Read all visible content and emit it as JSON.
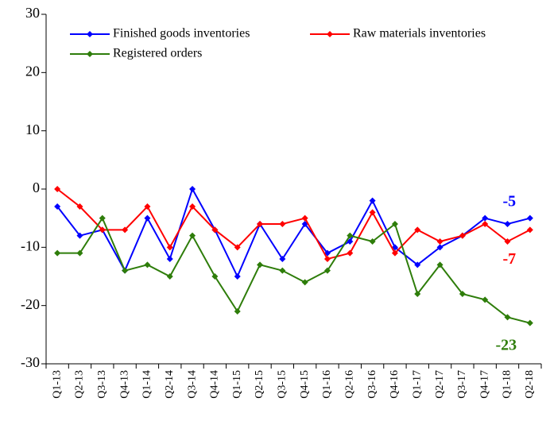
{
  "chart_data": {
    "type": "line",
    "categories": [
      "Q1-13",
      "Q2-13",
      "Q3-13",
      "Q4-13",
      "Q1-14",
      "Q2-14",
      "Q3-14",
      "Q4-14",
      "Q1-15",
      "Q2-15",
      "Q3-15",
      "Q4-15",
      "Q1-16",
      "Q2-16",
      "Q3-16",
      "Q4-16",
      "Q1-17",
      "Q2-17",
      "Q3-17",
      "Q4-17",
      "Q1-18",
      "Q2-18"
    ],
    "series": [
      {
        "name": "Finished goods inventories",
        "color": "#0000ff",
        "values": [
          -3,
          -8,
          -7,
          -14,
          -5,
          -12,
          0,
          -7,
          -15,
          -6,
          -12,
          -6,
          -11,
          -9,
          -2,
          -10,
          -13,
          -10,
          -8,
          -5,
          -6,
          -5
        ]
      },
      {
        "name": "Raw materials inventories",
        "color": "#ff0000",
        "values": [
          0,
          -3,
          -7,
          -7,
          -3,
          -10,
          -3,
          -7,
          -10,
          -6,
          -6,
          -5,
          -12,
          -11,
          -4,
          -11,
          -7,
          -9,
          -8,
          -6,
          -9,
          -7
        ]
      },
      {
        "name": "Registered orders",
        "color": "#2e7d0a",
        "values": [
          -11,
          -11,
          -5,
          -14,
          -13,
          -15,
          -8,
          -15,
          -21,
          -13,
          -14,
          -16,
          -14,
          -8,
          -9,
          -6,
          -18,
          -13,
          -18,
          -19,
          -22,
          -23
        ]
      }
    ],
    "ylim": [
      -30,
      30
    ],
    "yticks": [
      -30,
      -20,
      -10,
      0,
      10,
      20,
      30
    ],
    "grid": false
  }
}
